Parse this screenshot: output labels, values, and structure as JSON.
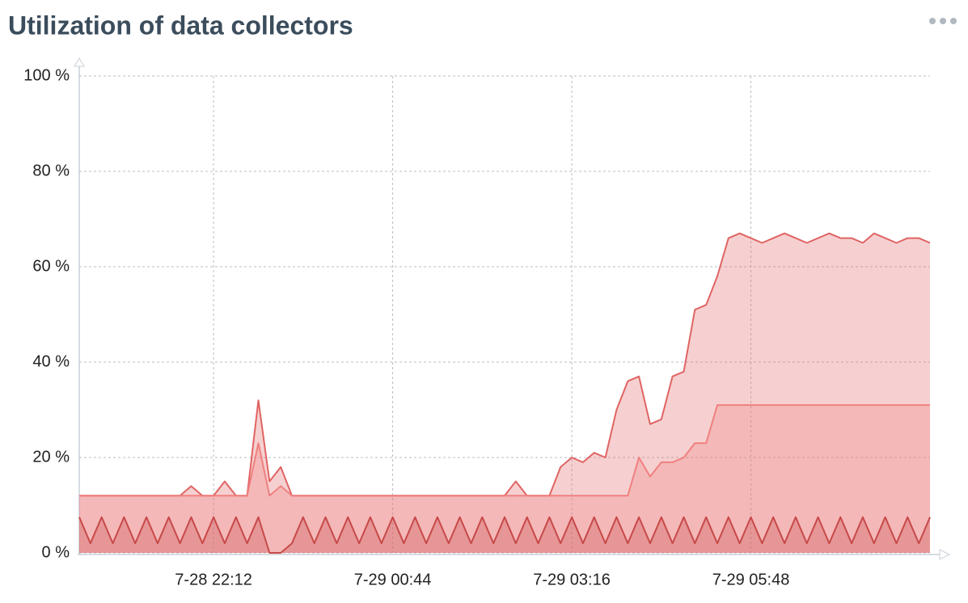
{
  "chart_data": {
    "type": "area",
    "title": "Utilization of data collectors",
    "categories": [
      null,
      null,
      null,
      null,
      null,
      null,
      null,
      null,
      null,
      null,
      null,
      null,
      "7-28 22:12",
      null,
      null,
      null,
      null,
      null,
      null,
      null,
      null,
      null,
      null,
      null,
      null,
      null,
      null,
      null,
      "7-29 00:44",
      null,
      null,
      null,
      null,
      null,
      null,
      null,
      null,
      null,
      null,
      null,
      null,
      null,
      null,
      null,
      "7-29 03:16",
      null,
      null,
      null,
      null,
      null,
      null,
      null,
      null,
      null,
      null,
      null,
      null,
      null,
      null,
      null,
      "7-29 05:48",
      null,
      null,
      null,
      null,
      null,
      null,
      null,
      null,
      null,
      null,
      null,
      null,
      null,
      null,
      null,
      null
    ],
    "series": [
      {
        "color": "#e06464",
        "values": [
          12,
          12,
          12,
          12,
          12,
          12,
          12,
          12,
          12,
          12,
          14,
          12,
          12,
          15,
          12,
          12,
          32,
          15,
          18,
          12,
          12,
          12,
          12,
          12,
          12,
          12,
          12,
          12,
          12,
          12,
          12,
          12,
          12,
          12,
          12,
          12,
          12,
          12,
          12,
          15,
          12,
          12,
          12,
          18,
          20,
          19,
          21,
          20,
          30,
          36,
          37,
          27,
          28,
          37,
          38,
          51,
          52,
          58,
          66,
          67,
          66,
          65,
          66,
          67,
          66,
          65,
          66,
          67,
          66,
          66,
          65,
          67,
          66,
          65,
          66,
          66,
          65
        ]
      },
      {
        "color": "#f08080",
        "values": [
          12,
          12,
          12,
          12,
          12,
          12,
          12,
          12,
          12,
          12,
          12,
          12,
          12,
          12,
          12,
          12,
          23,
          12,
          14,
          12,
          12,
          12,
          12,
          12,
          12,
          12,
          12,
          12,
          12,
          12,
          12,
          12,
          12,
          12,
          12,
          12,
          12,
          12,
          12,
          12,
          12,
          12,
          12,
          12,
          12,
          12,
          12,
          12,
          12,
          12,
          20,
          16,
          19,
          19,
          20,
          23,
          23,
          31,
          31,
          31,
          31,
          31,
          31,
          31,
          31,
          31,
          31,
          31,
          31,
          31,
          31,
          31,
          31,
          31,
          31,
          31,
          31
        ]
      },
      {
        "color": "#c84a4a",
        "values": [
          7.5,
          2,
          7.5,
          2,
          7.5,
          2,
          7.5,
          2,
          7.5,
          2,
          7.5,
          2,
          7.5,
          2,
          7.5,
          2,
          7.5,
          0,
          0,
          2,
          7.5,
          2,
          7.5,
          2,
          7.5,
          2,
          7.5,
          2,
          7.5,
          2,
          7.5,
          2,
          7.5,
          2,
          7.5,
          2,
          7.5,
          2,
          7.5,
          2,
          7.5,
          2,
          7.5,
          2,
          7.5,
          2,
          7.5,
          2,
          7.5,
          2,
          7.5,
          2,
          7.5,
          2,
          7.5,
          2,
          7.5,
          2,
          7.5,
          2,
          7.5,
          2,
          7.5,
          2,
          7.5,
          2,
          7.5,
          2,
          7.5,
          2,
          7.5,
          2,
          7.5,
          2,
          7.5,
          2,
          7.5
        ]
      }
    ],
    "ylim": [
      0,
      100
    ],
    "yticks": [
      {
        "value": 0,
        "label": "0 %"
      },
      {
        "value": 20,
        "label": "20 %"
      },
      {
        "value": 40,
        "label": "40 %"
      },
      {
        "value": 60,
        "label": "60 %"
      },
      {
        "value": 80,
        "label": "80 %"
      },
      {
        "value": 100,
        "label": "100 %"
      }
    ],
    "grid": true
  }
}
